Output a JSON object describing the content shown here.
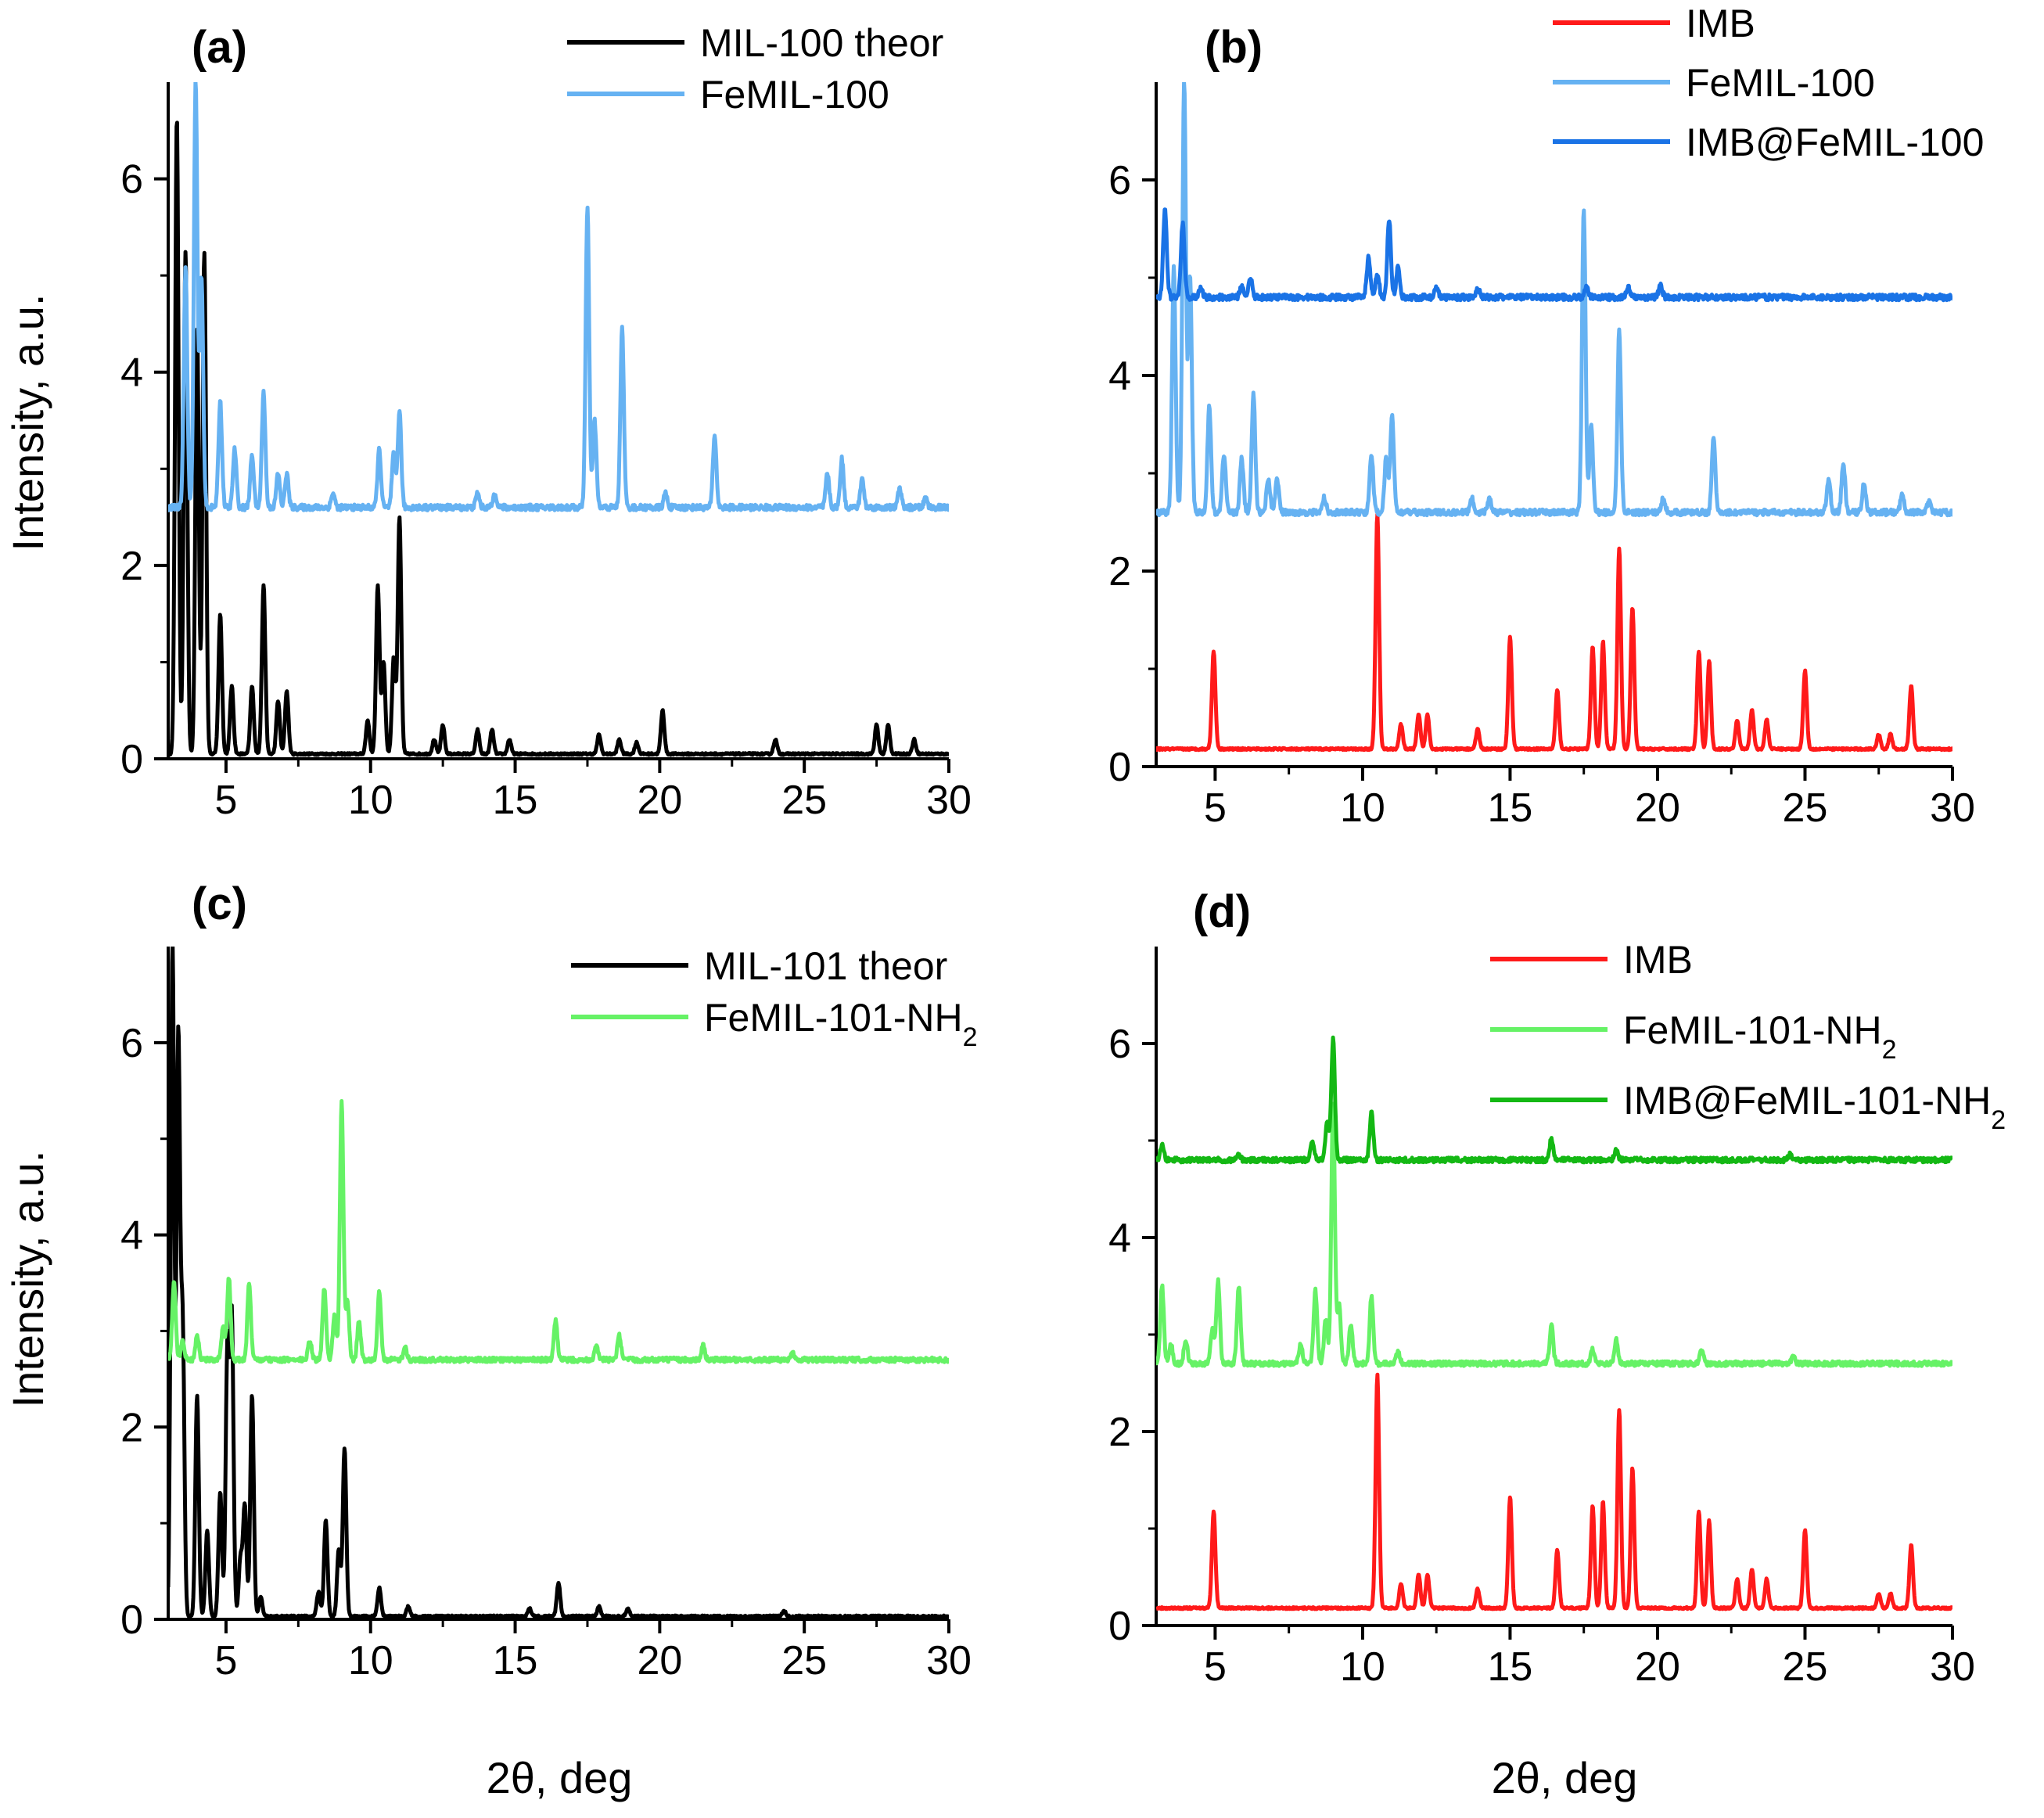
{
  "figure": {
    "ylabel": "Intensity, a.u.",
    "xlabel": "2θ, deg"
  },
  "chart_data": [
    {
      "panel": "(a)",
      "type": "line",
      "xlim": [
        3,
        30
      ],
      "ylim": [
        0,
        7
      ],
      "xticks": [
        5,
        10,
        15,
        20,
        25,
        30
      ],
      "yticks": [
        0,
        2,
        4,
        6
      ],
      "xlabel": "",
      "ylabel": "Intensity, a.u.",
      "legend": "top-right",
      "series": [
        {
          "name": "MIL-100 theor",
          "color": "#000000",
          "baseline": 0.05,
          "noise": 0.01,
          "peaks": [
            [
              3.3,
              6.6
            ],
            [
              3.6,
              5.2
            ],
            [
              4.0,
              4.4
            ],
            [
              4.25,
              5.2
            ],
            [
              4.8,
              1.45
            ],
            [
              5.2,
              0.7
            ],
            [
              5.9,
              0.7
            ],
            [
              6.3,
              1.75
            ],
            [
              6.8,
              0.55
            ],
            [
              7.1,
              0.65
            ],
            [
              9.9,
              0.35
            ],
            [
              10.25,
              1.75
            ],
            [
              10.45,
              0.95
            ],
            [
              10.8,
              1.0
            ],
            [
              11.0,
              2.45
            ],
            [
              12.2,
              0.15
            ],
            [
              12.5,
              0.3
            ],
            [
              13.7,
              0.25
            ],
            [
              14.2,
              0.25
            ],
            [
              14.8,
              0.15
            ],
            [
              17.9,
              0.2
            ],
            [
              18.6,
              0.15
            ],
            [
              19.2,
              0.12
            ],
            [
              20.1,
              0.45
            ],
            [
              24.0,
              0.15
            ],
            [
              27.5,
              0.3
            ],
            [
              27.9,
              0.3
            ],
            [
              28.8,
              0.15
            ]
          ]
        },
        {
          "name": "FeMIL-100",
          "color": "#66B2F2",
          "baseline": 2.6,
          "noise": 0.03,
          "peaks": [
            [
              3.6,
              2.5
            ],
            [
              3.95,
              4.4
            ],
            [
              4.15,
              2.4
            ],
            [
              4.8,
              1.1
            ],
            [
              5.3,
              0.6
            ],
            [
              5.9,
              0.55
            ],
            [
              6.3,
              1.2
            ],
            [
              6.8,
              0.35
            ],
            [
              7.1,
              0.35
            ],
            [
              8.7,
              0.15
            ],
            [
              10.3,
              0.6
            ],
            [
              10.8,
              0.55
            ],
            [
              11.0,
              1.0
            ],
            [
              13.7,
              0.15
            ],
            [
              14.3,
              0.15
            ],
            [
              17.5,
              3.1
            ],
            [
              17.75,
              0.9
            ],
            [
              18.7,
              1.85
            ],
            [
              20.2,
              0.15
            ],
            [
              21.9,
              0.75
            ],
            [
              25.8,
              0.35
            ],
            [
              26.3,
              0.5
            ],
            [
              27.0,
              0.3
            ],
            [
              28.3,
              0.2
            ],
            [
              29.2,
              0.1
            ]
          ]
        }
      ]
    },
    {
      "panel": "(b)",
      "type": "line",
      "xlim": [
        3,
        30
      ],
      "ylim": [
        0,
        7
      ],
      "xticks": [
        5,
        10,
        15,
        20,
        25,
        30
      ],
      "yticks": [
        0,
        2,
        4,
        6
      ],
      "xlabel": "2θ, deg",
      "ylabel": "",
      "legend": "top-right",
      "series": [
        {
          "name": "IMB",
          "color": "#FF1A1A",
          "baseline": 0.18,
          "noise": 0.01,
          "peaks": [
            [
              4.95,
              1.0
            ],
            [
              10.5,
              2.4
            ],
            [
              11.3,
              0.25
            ],
            [
              11.9,
              0.35
            ],
            [
              12.2,
              0.35
            ],
            [
              13.9,
              0.2
            ],
            [
              15.0,
              1.15
            ],
            [
              16.6,
              0.6
            ],
            [
              17.8,
              1.05
            ],
            [
              18.15,
              1.1
            ],
            [
              18.7,
              2.05
            ],
            [
              19.15,
              1.45
            ],
            [
              21.4,
              1.0
            ],
            [
              21.75,
              0.9
            ],
            [
              22.7,
              0.3
            ],
            [
              23.2,
              0.4
            ],
            [
              23.7,
              0.3
            ],
            [
              25.0,
              0.8
            ],
            [
              27.5,
              0.15
            ],
            [
              27.9,
              0.15
            ],
            [
              28.6,
              0.65
            ]
          ]
        },
        {
          "name": "FeMIL-100",
          "color": "#66B2F2",
          "baseline": 2.6,
          "noise": 0.03,
          "peaks": [
            [
              3.6,
              2.5
            ],
            [
              3.95,
              4.4
            ],
            [
              4.15,
              2.4
            ],
            [
              4.8,
              1.1
            ],
            [
              5.3,
              0.6
            ],
            [
              5.9,
              0.55
            ],
            [
              6.3,
              1.2
            ],
            [
              6.8,
              0.35
            ],
            [
              7.1,
              0.35
            ],
            [
              8.7,
              0.15
            ],
            [
              10.3,
              0.6
            ],
            [
              10.8,
              0.55
            ],
            [
              11.0,
              1.0
            ],
            [
              13.7,
              0.15
            ],
            [
              14.3,
              0.15
            ],
            [
              17.5,
              3.1
            ],
            [
              17.75,
              0.9
            ],
            [
              18.7,
              1.85
            ],
            [
              20.2,
              0.15
            ],
            [
              21.9,
              0.75
            ],
            [
              25.8,
              0.35
            ],
            [
              26.3,
              0.5
            ],
            [
              27.0,
              0.3
            ],
            [
              28.3,
              0.2
            ],
            [
              29.2,
              0.1
            ]
          ]
        },
        {
          "name": "IMB@FeMIL-100",
          "color": "#1A73E6",
          "baseline": 4.8,
          "noise": 0.03,
          "peaks": [
            [
              3.3,
              0.9
            ],
            [
              3.9,
              0.75
            ],
            [
              4.5,
              0.1
            ],
            [
              5.9,
              0.1
            ],
            [
              6.2,
              0.2
            ],
            [
              10.2,
              0.4
            ],
            [
              10.5,
              0.25
            ],
            [
              10.9,
              0.8
            ],
            [
              11.2,
              0.3
            ],
            [
              12.5,
              0.12
            ],
            [
              13.9,
              0.1
            ],
            [
              17.6,
              0.1
            ],
            [
              19.0,
              0.1
            ],
            [
              20.1,
              0.12
            ]
          ]
        }
      ]
    },
    {
      "panel": "(c)",
      "type": "line",
      "xlim": [
        3,
        30
      ],
      "ylim": [
        0,
        7
      ],
      "xticks": [
        5,
        10,
        15,
        20,
        25,
        30
      ],
      "yticks": [
        0,
        2,
        4,
        6
      ],
      "xlabel": "2θ, deg",
      "ylabel": "Intensity, a.u.",
      "legend": "top-right",
      "series": [
        {
          "name": "MIL-101 theor",
          "color": "#000000",
          "baseline": 0.03,
          "noise": 0.01,
          "peaks": [
            [
              3.15,
              7.0
            ],
            [
              3.35,
              6.0
            ],
            [
              3.5,
              3.0
            ],
            [
              4.0,
              2.3
            ],
            [
              4.35,
              0.9
            ],
            [
              4.8,
              1.3
            ],
            [
              5.05,
              2.8
            ],
            [
              5.2,
              3.1
            ],
            [
              5.5,
              0.6
            ],
            [
              5.65,
              1.15
            ],
            [
              5.9,
              2.3
            ],
            [
              6.2,
              0.2
            ],
            [
              8.2,
              0.25
            ],
            [
              8.45,
              1.0
            ],
            [
              8.9,
              0.7
            ],
            [
              9.1,
              1.75
            ],
            [
              10.3,
              0.3
            ],
            [
              11.3,
              0.1
            ],
            [
              15.5,
              0.08
            ],
            [
              16.5,
              0.35
            ],
            [
              17.9,
              0.1
            ],
            [
              18.9,
              0.08
            ],
            [
              24.3,
              0.06
            ]
          ]
        },
        {
          "name": "FeMIL-101-NH2",
          "color": "#66F266",
          "baseline": 2.7,
          "noise": 0.025,
          "peaks": [
            [
              3.2,
              0.8
            ],
            [
              3.5,
              0.2
            ],
            [
              4.0,
              0.25
            ],
            [
              4.9,
              0.35
            ],
            [
              5.1,
              0.85
            ],
            [
              5.8,
              0.8
            ],
            [
              7.9,
              0.2
            ],
            [
              8.4,
              0.75
            ],
            [
              8.75,
              0.45
            ],
            [
              9.0,
              2.7
            ],
            [
              9.2,
              0.6
            ],
            [
              9.6,
              0.4
            ],
            [
              10.3,
              0.7
            ],
            [
              11.2,
              0.12
            ],
            [
              16.4,
              0.4
            ],
            [
              17.8,
              0.15
            ],
            [
              18.6,
              0.25
            ],
            [
              21.5,
              0.15
            ],
            [
              24.6,
              0.08
            ]
          ]
        }
      ]
    },
    {
      "panel": "(d)",
      "type": "line",
      "xlim": [
        3,
        30
      ],
      "ylim": [
        0,
        7
      ],
      "xticks": [
        5,
        10,
        15,
        20,
        25,
        30
      ],
      "yticks": [
        0,
        2,
        4,
        6
      ],
      "xlabel": "2θ, deg",
      "ylabel": "",
      "legend": "top-right",
      "series": [
        {
          "name": "IMB",
          "color": "#FF1A1A",
          "baseline": 0.18,
          "noise": 0.01,
          "peaks": [
            [
              4.95,
              1.0
            ],
            [
              10.5,
              2.4
            ],
            [
              11.3,
              0.25
            ],
            [
              11.9,
              0.35
            ],
            [
              12.2,
              0.35
            ],
            [
              13.9,
              0.2
            ],
            [
              15.0,
              1.15
            ],
            [
              16.6,
              0.6
            ],
            [
              17.8,
              1.05
            ],
            [
              18.15,
              1.1
            ],
            [
              18.7,
              2.05
            ],
            [
              19.15,
              1.45
            ],
            [
              21.4,
              1.0
            ],
            [
              21.75,
              0.9
            ],
            [
              22.7,
              0.3
            ],
            [
              23.2,
              0.4
            ],
            [
              23.7,
              0.3
            ],
            [
              25.0,
              0.8
            ],
            [
              27.5,
              0.15
            ],
            [
              27.9,
              0.15
            ],
            [
              28.6,
              0.65
            ]
          ]
        },
        {
          "name": "FeMIL-101-NH2",
          "color": "#66F266",
          "baseline": 2.7,
          "noise": 0.025,
          "peaks": [
            [
              3.2,
              0.8
            ],
            [
              3.5,
              0.2
            ],
            [
              4.0,
              0.25
            ],
            [
              4.9,
              0.35
            ],
            [
              5.1,
              0.85
            ],
            [
              5.8,
              0.8
            ],
            [
              7.9,
              0.2
            ],
            [
              8.4,
              0.75
            ],
            [
              8.75,
              0.45
            ],
            [
              9.0,
              2.7
            ],
            [
              9.2,
              0.6
            ],
            [
              9.6,
              0.4
            ],
            [
              10.3,
              0.7
            ],
            [
              11.2,
              0.12
            ],
            [
              16.4,
              0.4
            ],
            [
              17.8,
              0.15
            ],
            [
              18.6,
              0.25
            ],
            [
              21.5,
              0.15
            ],
            [
              24.6,
              0.08
            ]
          ]
        },
        {
          "name": "IMB@FeMIL-101-NH2",
          "color": "#14B814",
          "baseline": 4.8,
          "noise": 0.025,
          "peaks": [
            [
              3.2,
              0.15
            ],
            [
              5.8,
              0.05
            ],
            [
              8.3,
              0.2
            ],
            [
              8.8,
              0.4
            ],
            [
              9.0,
              1.25
            ],
            [
              10.3,
              0.5
            ],
            [
              16.4,
              0.22
            ],
            [
              18.6,
              0.1
            ],
            [
              24.5,
              0.06
            ]
          ]
        }
      ]
    }
  ]
}
